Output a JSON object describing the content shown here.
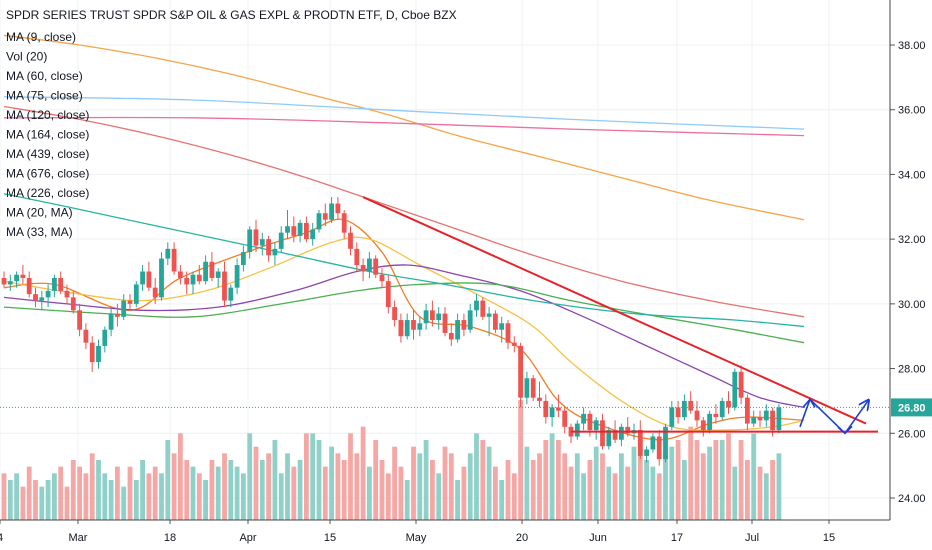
{
  "chart_data": {
    "type": "candlestick",
    "title": "SPDR SERIES TRUST SPDR S&P OIL & GAS EXPL & PRODTN ETF, D, Cboe BZX",
    "legend": [
      "MA (9, close)",
      "Vol (20)",
      "MA (60, close)",
      "MA (75, close)",
      "MA (120, close)",
      "MA (164, close)",
      "MA (439, close)",
      "MA (676, close)",
      "MA (226, close)",
      "MA (20, MA)",
      "MA (33, MA)"
    ],
    "y_ticks": [
      "24.00",
      "26.00",
      "28.00",
      "30.00",
      "32.00",
      "34.00",
      "36.00",
      "38.00"
    ],
    "x_ticks": [
      "4",
      "Mar",
      "18",
      "Apr",
      "15",
      "May",
      "20",
      "Jun",
      "17",
      "Jul",
      "15"
    ],
    "ylim": [
      23.3,
      39.6
    ],
    "last_price": "26.80",
    "colors": {
      "up": "#26a69a",
      "down": "#ef5350",
      "vol_up": "#8fd1c8",
      "vol_down": "#f5a7a6",
      "trend": "#e8222a",
      "projection": "#1a3fd6"
    },
    "candles": [
      [
        30.8,
        31.0,
        30.5,
        30.6
      ],
      [
        30.6,
        30.9,
        30.4,
        30.7
      ],
      [
        30.7,
        31.0,
        30.5,
        30.9
      ],
      [
        30.9,
        31.2,
        30.6,
        30.8
      ],
      [
        30.8,
        31.0,
        30.2,
        30.3
      ],
      [
        30.3,
        30.5,
        29.9,
        30.1
      ],
      [
        30.1,
        30.4,
        29.8,
        30.2
      ],
      [
        30.2,
        30.6,
        29.9,
        30.4
      ],
      [
        30.4,
        30.9,
        30.2,
        30.8
      ],
      [
        30.8,
        31.0,
        30.3,
        30.4
      ],
      [
        30.4,
        30.6,
        30.0,
        30.2
      ],
      [
        30.2,
        30.4,
        29.7,
        29.8
      ],
      [
        29.8,
        30.0,
        29.0,
        29.2
      ],
      [
        29.2,
        29.4,
        28.6,
        28.8
      ],
      [
        28.8,
        29.0,
        27.9,
        28.2
      ],
      [
        28.2,
        28.9,
        28.0,
        28.7
      ],
      [
        28.7,
        29.3,
        28.5,
        29.2
      ],
      [
        29.2,
        29.9,
        29.0,
        29.7
      ],
      [
        29.7,
        30.0,
        29.3,
        29.6
      ],
      [
        29.6,
        30.3,
        29.5,
        30.1
      ],
      [
        30.1,
        30.3,
        29.8,
        30.0
      ],
      [
        30.0,
        30.7,
        29.9,
        30.6
      ],
      [
        30.6,
        31.2,
        30.4,
        31.0
      ],
      [
        31.0,
        31.3,
        30.4,
        30.5
      ],
      [
        30.5,
        30.8,
        30.0,
        30.2
      ],
      [
        30.2,
        31.6,
        30.1,
        31.4
      ],
      [
        31.4,
        31.9,
        31.2,
        31.7
      ],
      [
        31.7,
        31.9,
        30.9,
        31.0
      ],
      [
        31.0,
        31.2,
        30.6,
        30.8
      ],
      [
        30.8,
        31.0,
        30.3,
        30.6
      ],
      [
        30.6,
        31.0,
        30.3,
        30.9
      ],
      [
        30.9,
        31.2,
        30.6,
        30.7
      ],
      [
        30.7,
        31.5,
        30.6,
        31.3
      ],
      [
        31.3,
        31.6,
        30.7,
        30.8
      ],
      [
        30.8,
        31.1,
        30.5,
        31.0
      ],
      [
        31.0,
        31.3,
        29.9,
        30.1
      ],
      [
        30.1,
        30.6,
        29.9,
        30.5
      ],
      [
        30.5,
        31.4,
        30.3,
        31.2
      ],
      [
        31.2,
        31.8,
        31.0,
        31.6
      ],
      [
        31.6,
        32.4,
        31.4,
        32.3
      ],
      [
        32.3,
        32.6,
        31.6,
        31.8
      ],
      [
        31.8,
        32.2,
        31.5,
        32.0
      ],
      [
        32.0,
        32.1,
        31.3,
        31.5
      ],
      [
        31.5,
        31.9,
        31.2,
        31.7
      ],
      [
        31.7,
        32.4,
        31.6,
        32.2
      ],
      [
        32.2,
        32.9,
        32.0,
        32.4
      ],
      [
        32.4,
        32.7,
        31.9,
        32.1
      ],
      [
        32.1,
        32.6,
        31.9,
        32.5
      ],
      [
        32.5,
        32.7,
        31.9,
        32.0
      ],
      [
        32.0,
        32.5,
        31.8,
        32.3
      ],
      [
        32.3,
        32.9,
        32.2,
        32.8
      ],
      [
        32.8,
        33.1,
        32.4,
        32.6
      ],
      [
        32.6,
        33.3,
        32.5,
        33.1
      ],
      [
        33.1,
        33.3,
        32.6,
        32.8
      ],
      [
        32.8,
        32.9,
        32.0,
        32.2
      ],
      [
        32.2,
        32.4,
        31.5,
        31.7
      ],
      [
        31.7,
        31.9,
        31.0,
        31.2
      ],
      [
        31.2,
        31.4,
        30.7,
        31.0
      ],
      [
        31.0,
        31.6,
        30.8,
        31.4
      ],
      [
        31.4,
        31.5,
        30.8,
        30.9
      ],
      [
        30.9,
        31.1,
        30.5,
        30.7
      ],
      [
        30.7,
        30.9,
        29.7,
        29.9
      ],
      [
        29.9,
        30.1,
        29.3,
        29.5
      ],
      [
        29.5,
        29.7,
        28.8,
        29.0
      ],
      [
        29.0,
        29.7,
        28.9,
        29.5
      ],
      [
        29.5,
        29.8,
        28.9,
        29.2
      ],
      [
        29.2,
        29.6,
        29.0,
        29.4
      ],
      [
        29.4,
        30.0,
        29.2,
        29.8
      ],
      [
        29.8,
        30.1,
        29.3,
        29.5
      ],
      [
        29.5,
        29.9,
        29.2,
        29.7
      ],
      [
        29.7,
        29.9,
        29.0,
        29.1
      ],
      [
        29.1,
        29.4,
        28.7,
        28.9
      ],
      [
        28.9,
        29.7,
        28.8,
        29.5
      ],
      [
        29.5,
        29.7,
        29.0,
        29.2
      ],
      [
        29.2,
        30.0,
        29.1,
        29.8
      ],
      [
        29.8,
        30.3,
        29.6,
        30.1
      ],
      [
        30.1,
        30.2,
        29.5,
        29.6
      ],
      [
        29.6,
        29.9,
        29.0,
        29.7
      ],
      [
        29.7,
        29.8,
        29.1,
        29.2
      ],
      [
        29.2,
        29.6,
        28.8,
        29.4
      ],
      [
        29.4,
        29.5,
        28.6,
        28.8
      ],
      [
        28.8,
        29.0,
        28.5,
        28.7
      ],
      [
        28.7,
        28.8,
        26.8,
        27.1
      ],
      [
        27.1,
        27.9,
        26.9,
        27.7
      ],
      [
        27.7,
        27.8,
        27.0,
        27.1
      ],
      [
        27.1,
        27.6,
        26.8,
        27.0
      ],
      [
        27.0,
        27.2,
        26.3,
        26.5
      ],
      [
        26.5,
        26.9,
        26.2,
        26.8
      ],
      [
        26.8,
        27.2,
        26.5,
        26.7
      ],
      [
        26.7,
        26.8,
        26.0,
        26.2
      ],
      [
        26.2,
        26.3,
        25.7,
        25.9
      ],
      [
        25.9,
        26.4,
        25.8,
        26.3
      ],
      [
        26.3,
        26.8,
        26.1,
        26.6
      ],
      [
        26.6,
        26.7,
        25.9,
        26.1
      ],
      [
        26.1,
        26.5,
        25.8,
        26.4
      ],
      [
        26.4,
        26.6,
        25.5,
        25.6
      ],
      [
        25.6,
        26.2,
        25.5,
        26.1
      ],
      [
        26.1,
        26.4,
        25.7,
        25.8
      ],
      [
        25.8,
        26.3,
        25.6,
        26.2
      ],
      [
        26.2,
        26.5,
        25.9,
        26.0
      ],
      [
        26.0,
        26.3,
        25.8,
        26.1
      ],
      [
        26.1,
        26.4,
        25.2,
        25.3
      ],
      [
        25.3,
        25.6,
        25.1,
        25.5
      ],
      [
        25.5,
        26.0,
        25.4,
        25.9
      ],
      [
        25.9,
        26.1,
        25.0,
        25.2
      ],
      [
        25.2,
        26.3,
        25.1,
        26.2
      ],
      [
        26.2,
        27.0,
        26.1,
        26.8
      ],
      [
        26.8,
        27.0,
        26.3,
        26.5
      ],
      [
        26.5,
        27.2,
        26.4,
        27.0
      ],
      [
        27.0,
        27.3,
        26.6,
        26.7
      ],
      [
        26.7,
        27.0,
        26.2,
        26.4
      ],
      [
        26.4,
        26.5,
        25.9,
        26.1
      ],
      [
        26.1,
        26.7,
        26.0,
        26.6
      ],
      [
        26.6,
        26.9,
        26.3,
        26.5
      ],
      [
        26.5,
        27.1,
        26.4,
        27.0
      ],
      [
        27.0,
        27.3,
        26.6,
        26.8
      ],
      [
        26.8,
        28.0,
        26.7,
        27.9
      ],
      [
        27.9,
        28.1,
        26.9,
        27.1
      ],
      [
        27.1,
        27.2,
        26.1,
        26.3
      ],
      [
        26.3,
        26.7,
        26.2,
        26.5
      ],
      [
        26.5,
        26.7,
        26.2,
        26.4
      ],
      [
        26.4,
        26.9,
        26.2,
        26.7
      ],
      [
        26.7,
        26.8,
        25.9,
        26.1
      ],
      [
        26.1,
        26.9,
        26.0,
        26.8
      ]
    ],
    "volume": [
      7,
      6,
      7,
      5,
      8,
      6,
      5,
      6,
      7,
      8,
      5,
      9,
      8,
      7,
      10,
      9,
      7,
      6,
      8,
      5,
      8,
      6,
      9,
      7,
      8,
      7,
      12,
      10,
      13,
      9,
      8,
      7,
      6,
      9,
      8,
      10,
      9,
      8,
      7,
      13,
      11,
      9,
      10,
      12,
      7,
      10,
      8,
      9,
      13,
      13,
      12,
      8,
      11,
      10,
      9,
      13,
      10,
      14,
      8,
      12,
      9,
      7,
      11,
      8,
      6,
      11,
      10,
      12,
      9,
      7,
      11,
      10,
      6,
      8,
      10,
      13,
      12,
      11,
      8,
      6,
      9,
      7,
      18,
      11,
      9,
      10,
      12,
      13,
      12,
      10,
      8,
      10,
      7,
      9,
      11,
      10,
      8,
      7,
      10,
      8,
      11,
      12,
      9,
      8,
      7,
      10,
      11,
      12,
      9,
      14,
      12,
      10,
      11,
      12,
      12,
      13,
      8,
      12,
      9,
      13,
      8,
      7,
      9,
      10,
      8,
      6,
      7,
      8
    ],
    "vol_max": 18,
    "ma_lines": [
      {
        "name": "MA (9, close)",
        "color": "#f57c26",
        "points": [
          [
            0,
            30.5
          ],
          [
            8,
            30.6
          ],
          [
            20,
            29.8
          ],
          [
            28,
            30.8
          ],
          [
            40,
            31.7
          ],
          [
            48,
            32.2
          ],
          [
            54,
            32.6
          ],
          [
            60,
            31.6
          ],
          [
            66,
            29.6
          ],
          [
            74,
            29.3
          ],
          [
            82,
            28.6
          ],
          [
            88,
            27.0
          ],
          [
            94,
            26.3
          ],
          [
            104,
            25.8
          ],
          [
            112,
            26.3
          ],
          [
            118,
            26.5
          ],
          [
            127,
            26.4
          ]
        ]
      },
      {
        "name": "MA (20, MA)",
        "color": "#f6c243",
        "points": [
          [
            0,
            30.7
          ],
          [
            12,
            30.3
          ],
          [
            22,
            30.1
          ],
          [
            32,
            30.4
          ],
          [
            42,
            31.1
          ],
          [
            52,
            31.9
          ],
          [
            58,
            32.0
          ],
          [
            66,
            31.2
          ],
          [
            76,
            30.2
          ],
          [
            84,
            29.3
          ],
          [
            90,
            28.2
          ],
          [
            98,
            27.0
          ],
          [
            106,
            26.2
          ],
          [
            114,
            26.1
          ],
          [
            122,
            26.2
          ],
          [
            127,
            26.4
          ]
        ]
      },
      {
        "name": "MA (33, MA)",
        "color": "#8e44ad",
        "points": [
          [
            0,
            30.2
          ],
          [
            10,
            30.0
          ],
          [
            22,
            29.8
          ],
          [
            34,
            29.9
          ],
          [
            46,
            30.4
          ],
          [
            56,
            31.0
          ],
          [
            64,
            31.2
          ],
          [
            72,
            30.9
          ],
          [
            82,
            30.4
          ],
          [
            92,
            29.6
          ],
          [
            102,
            28.7
          ],
          [
            112,
            27.8
          ],
          [
            120,
            27.1
          ],
          [
            127,
            26.8
          ]
        ]
      },
      {
        "name": "MA (60, close)",
        "color": "#4caf50",
        "points": [
          [
            0,
            29.9
          ],
          [
            16,
            29.7
          ],
          [
            30,
            29.6
          ],
          [
            44,
            30.0
          ],
          [
            56,
            30.4
          ],
          [
            66,
            30.6
          ],
          [
            78,
            30.6
          ],
          [
            90,
            30.1
          ],
          [
            104,
            29.6
          ],
          [
            116,
            29.2
          ],
          [
            127,
            28.8
          ]
        ]
      },
      {
        "name": "MA (75, close)",
        "color": "#26b5a2",
        "points": [
          [
            0,
            33.4
          ],
          [
            10,
            33.0
          ],
          [
            22,
            32.5
          ],
          [
            34,
            32.0
          ],
          [
            46,
            31.5
          ],
          [
            58,
            31.0
          ],
          [
            70,
            30.6
          ],
          [
            84,
            30.1
          ],
          [
            100,
            29.7
          ],
          [
            116,
            29.5
          ],
          [
            127,
            29.3
          ]
        ]
      },
      {
        "name": "MA (120, close)",
        "color": "#e57373",
        "points": [
          [
            0,
            36.1
          ],
          [
            12,
            35.7
          ],
          [
            24,
            35.2
          ],
          [
            36,
            34.6
          ],
          [
            48,
            33.9
          ],
          [
            60,
            33.1
          ],
          [
            72,
            32.3
          ],
          [
            84,
            31.5
          ],
          [
            98,
            30.7
          ],
          [
            112,
            30.1
          ],
          [
            127,
            29.6
          ]
        ]
      },
      {
        "name": "MA (164, close)",
        "color": "#f6a447",
        "points": [
          [
            0,
            38.3
          ],
          [
            12,
            38.0
          ],
          [
            24,
            37.6
          ],
          [
            36,
            37.1
          ],
          [
            48,
            36.5
          ],
          [
            60,
            35.9
          ],
          [
            72,
            35.2
          ],
          [
            84,
            34.6
          ],
          [
            98,
            33.9
          ],
          [
            112,
            33.2
          ],
          [
            127,
            32.6
          ]
        ]
      },
      {
        "name": "MA (439, close)",
        "color": "#90caf9",
        "points": [
          [
            0,
            36.4
          ],
          [
            30,
            36.3
          ],
          [
            60,
            36.0
          ],
          [
            90,
            35.7
          ],
          [
            127,
            35.4
          ]
        ]
      },
      {
        "name": "MA (676, close)",
        "color": "#ec6fa0",
        "points": [
          [
            0,
            35.75
          ],
          [
            30,
            35.75
          ],
          [
            60,
            35.6
          ],
          [
            90,
            35.4
          ],
          [
            127,
            35.2
          ]
        ]
      }
    ]
  }
}
